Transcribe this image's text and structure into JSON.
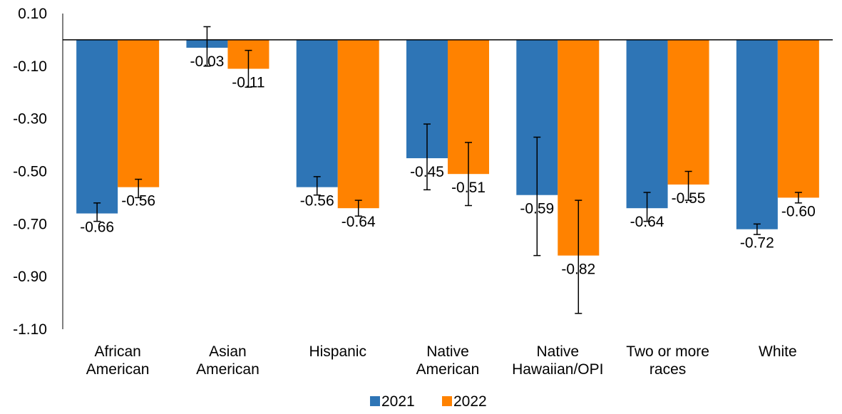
{
  "chart_data": {
    "type": "bar",
    "categories": [
      [
        "African",
        "American"
      ],
      [
        "Asian",
        "American"
      ],
      [
        "Hispanic"
      ],
      [
        "Native",
        "American"
      ],
      [
        "Native",
        "Hawaiian/OPI"
      ],
      [
        "Two or more",
        "races"
      ],
      [
        "White"
      ]
    ],
    "series": [
      {
        "name": "2021",
        "color": "#2E75B6",
        "values": [
          -0.66,
          -0.03,
          -0.56,
          -0.45,
          -0.59,
          -0.64,
          -0.72
        ],
        "labels": [
          "-0.66",
          "-0.03",
          "-0.56",
          "-0.45",
          "-0.59",
          "-0.64",
          "-0.72"
        ],
        "error_low": [
          -0.69,
          -0.1,
          -0.59,
          -0.57,
          -0.82,
          -0.69,
          -0.74
        ],
        "error_high": [
          -0.62,
          0.05,
          -0.52,
          -0.32,
          -0.37,
          -0.58,
          -0.7
        ]
      },
      {
        "name": "2022",
        "color": "#FF8200",
        "values": [
          -0.56,
          -0.11,
          -0.64,
          -0.51,
          -0.82,
          -0.55,
          -0.6
        ],
        "labels": [
          "-0.56",
          "-0.11",
          "-0.64",
          "-0.51",
          "-0.82",
          "-0.55",
          "-0.60"
        ],
        "error_low": [
          -0.6,
          -0.18,
          -0.67,
          -0.63,
          -1.04,
          -0.61,
          -0.62
        ],
        "error_high": [
          -0.53,
          -0.04,
          -0.61,
          -0.39,
          -0.61,
          -0.5,
          -0.58
        ]
      }
    ],
    "yticks": [
      "0.10",
      "-0.10",
      "-0.30",
      "-0.50",
      "-0.70",
      "-0.90",
      "-1.10"
    ],
    "ytick_values": [
      0.1,
      -0.1,
      -0.3,
      -0.5,
      -0.7,
      -0.9,
      -1.1
    ],
    "ylim": [
      -1.1,
      0.1
    ],
    "xlabel": "",
    "ylabel": "",
    "title": "",
    "grid": false,
    "legend_position": "bottom"
  }
}
